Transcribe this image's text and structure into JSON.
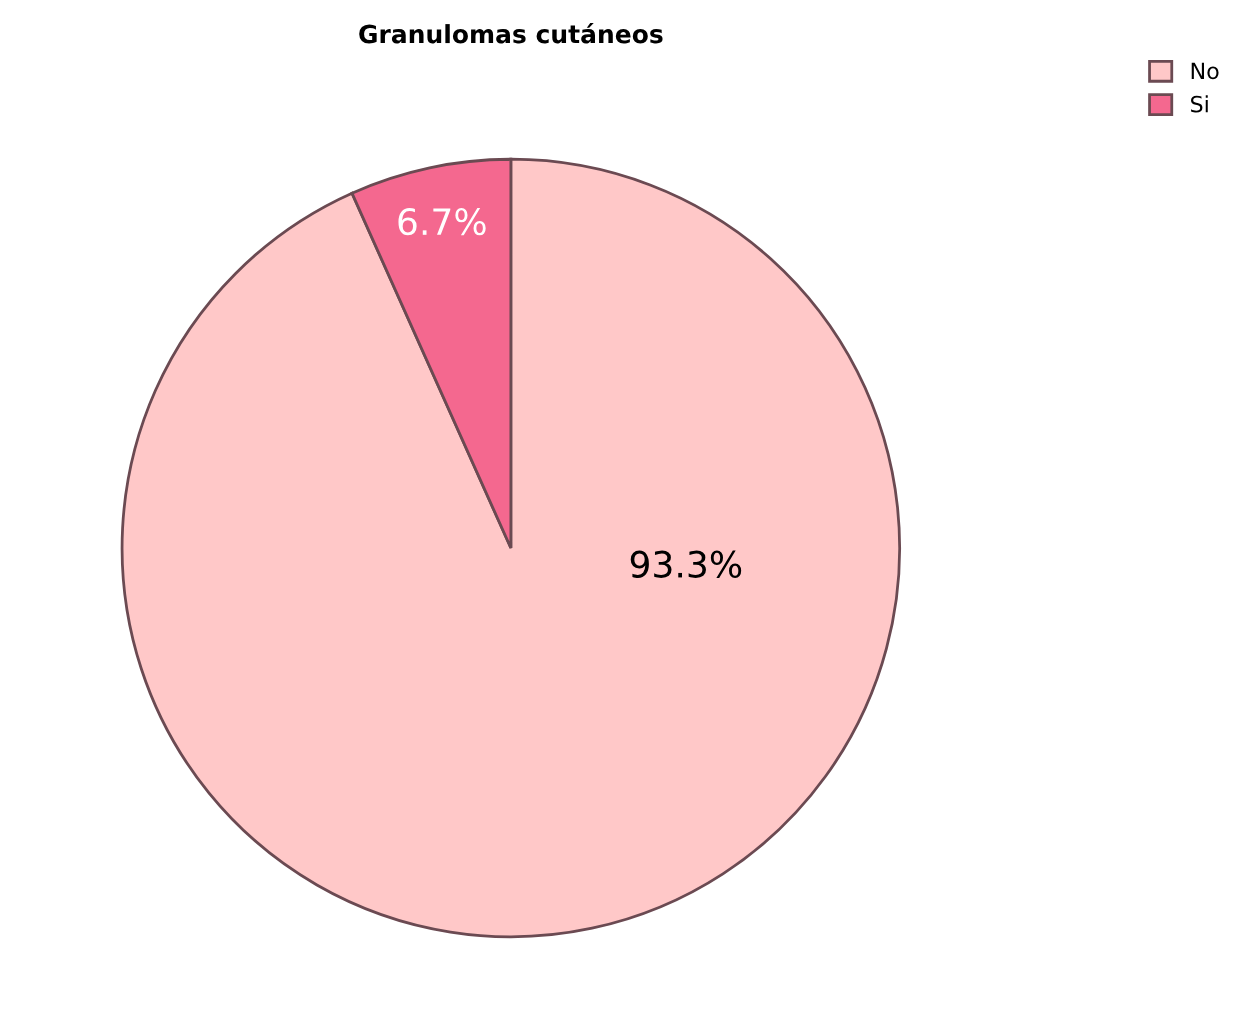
{
  "chart_data": {
    "type": "pie",
    "title": "Granulomas cutáneos",
    "categories": [
      "No",
      "Si"
    ],
    "values": [
      93.3,
      6.7
    ],
    "colors": [
      "#ffc8c8",
      "#f4688f"
    ],
    "value_labels": [
      "93.3%",
      "6.7%"
    ],
    "legend": "top right"
  }
}
